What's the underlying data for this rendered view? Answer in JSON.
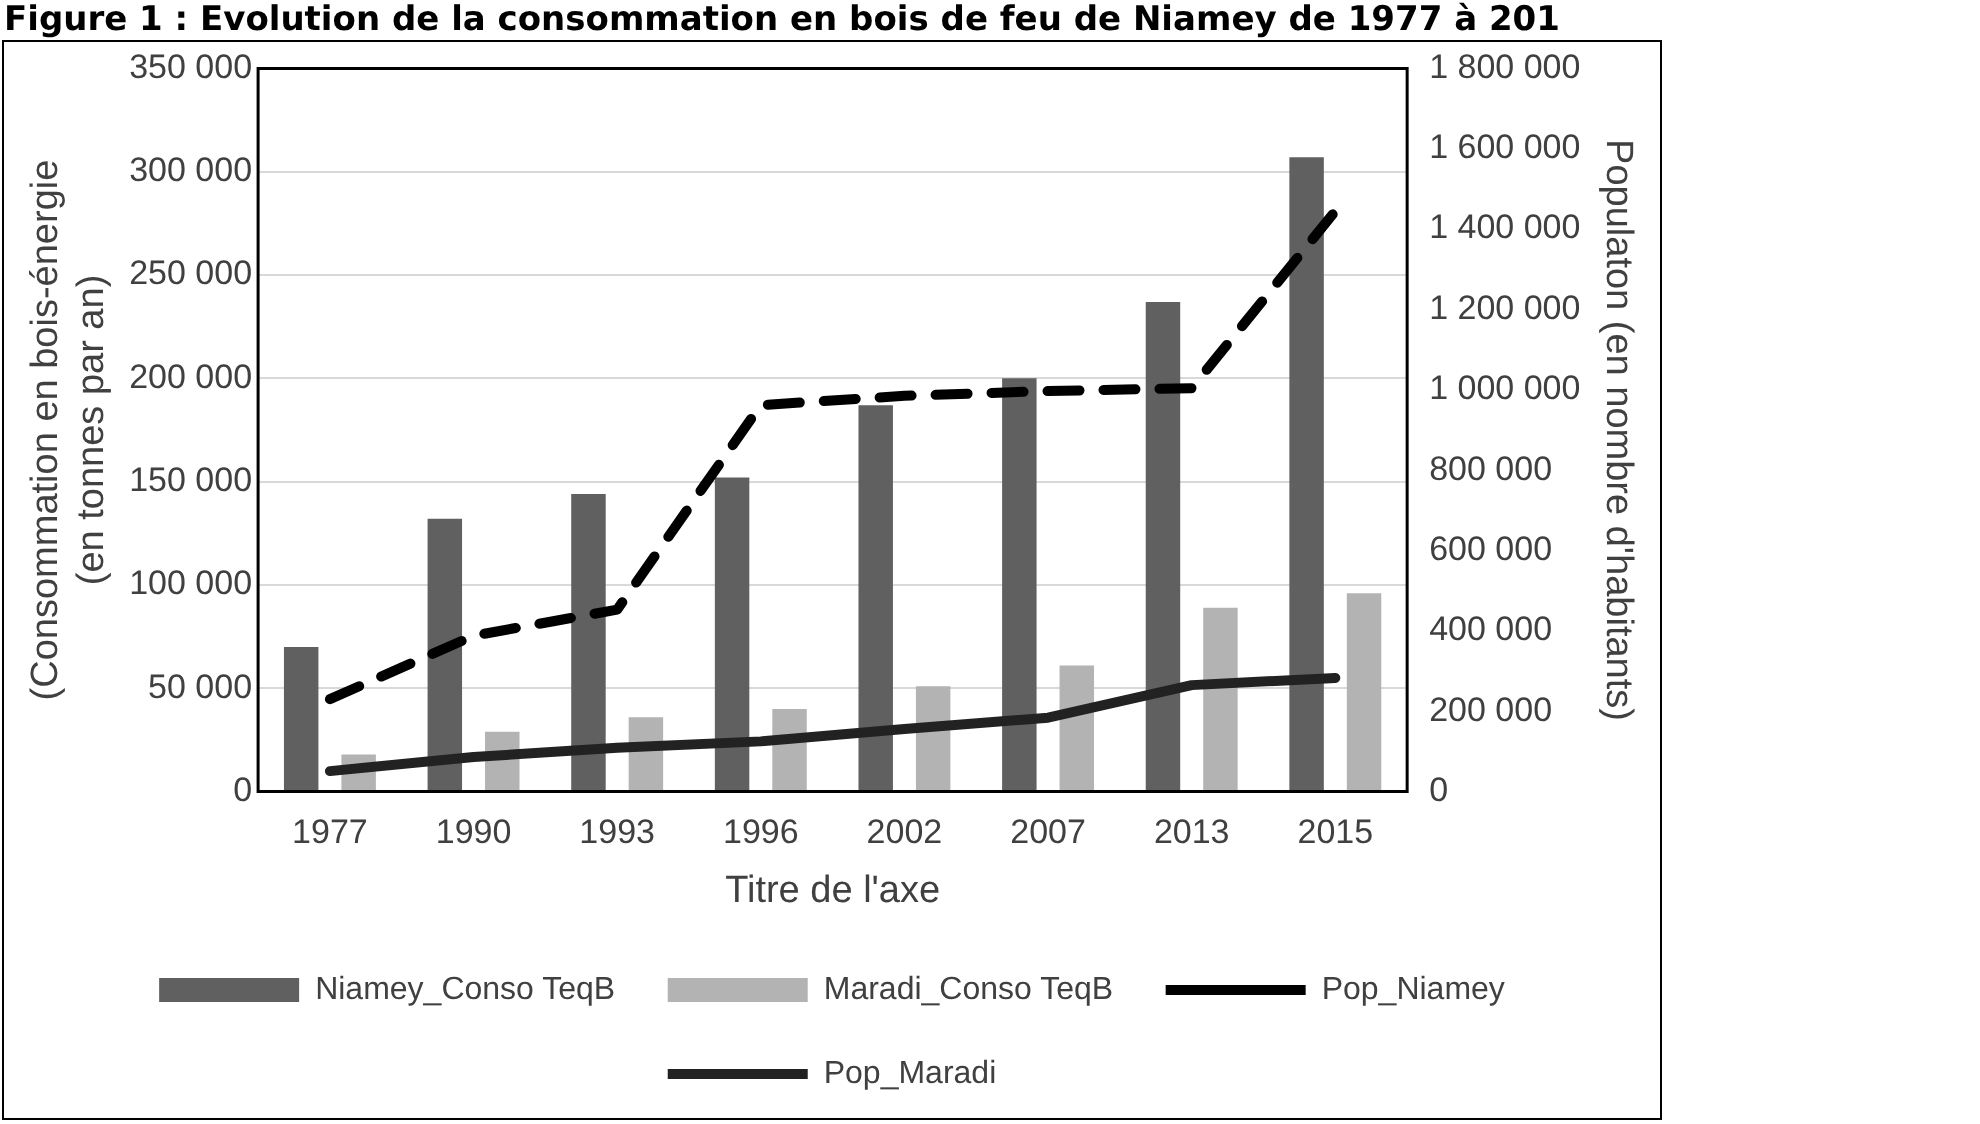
{
  "chart_data": {
    "type": "bar",
    "title": "Figure 1 : Evolution de la consommation en bois de feu de Niamey de 1977 à 201",
    "categories": [
      "1977",
      "1990",
      "1993",
      "1996",
      "2002",
      "2007",
      "2013",
      "2015"
    ],
    "series": [
      {
        "name": "Niamey_Conso TeqB",
        "color": "#606060",
        "values": [
          70000,
          132000,
          144000,
          152000,
          187000,
          200000,
          237000,
          307000
        ]
      },
      {
        "name": "Maradi_Conso TeqB",
        "color": "#b3b3b3",
        "values": [
          18000,
          29000,
          36000,
          40000,
          51000,
          61000,
          89000,
          96000
        ]
      },
      {
        "name": "Pop_Niamey",
        "type": "line",
        "axis": "y2",
        "color": "#000000",
        "line_style": "dashed",
        "values": [
          230000,
          388000,
          453000,
          962000,
          985000,
          997000,
          1004000,
          1445000
        ]
      },
      {
        "name": "Pop_Maradi",
        "type": "line",
        "axis": "y2",
        "color": "#222222",
        "line_style": "solid",
        "values": [
          51000,
          86000,
          109000,
          125000,
          156000,
          184000,
          265000,
          283000
        ]
      }
    ],
    "xlabel": "Titre de l'axe",
    "ylabel": "(Consommation en bois-énergie (en tonnes par an)",
    "y2label": "Populaton (en nombre d'habitants)",
    "ylim": [
      0,
      350000
    ],
    "yticks": [
      {
        "value": 0,
        "label": "0"
      },
      {
        "value": 50000,
        "label": "50 000"
      },
      {
        "value": 100000,
        "label": "100 000"
      },
      {
        "value": 150000,
        "label": "150 000"
      },
      {
        "value": 200000,
        "label": "200 000"
      },
      {
        "value": 250000,
        "label": "250 000"
      },
      {
        "value": 300000,
        "label": "300 000"
      },
      {
        "value": 350000,
        "label": "350 000"
      }
    ],
    "y2lim": [
      0,
      1800000
    ],
    "y2ticks": [
      {
        "value": 0,
        "label": "0"
      },
      {
        "value": 200000,
        "label": "200 000"
      },
      {
        "value": 400000,
        "label": "400 000"
      },
      {
        "value": 600000,
        "label": "600 000"
      },
      {
        "value": 800000,
        "label": "800 000"
      },
      {
        "value": 1000000,
        "label": "1 000 000"
      },
      {
        "value": 1200000,
        "label": "1 200 000"
      },
      {
        "value": 1400000,
        "label": "1 400 000"
      },
      {
        "value": 1600000,
        "label": "1 600 000"
      },
      {
        "value": 1800000,
        "label": "1 800 000"
      }
    ],
    "grid": "y",
    "legend": "bottom",
    "marker": "none"
  }
}
